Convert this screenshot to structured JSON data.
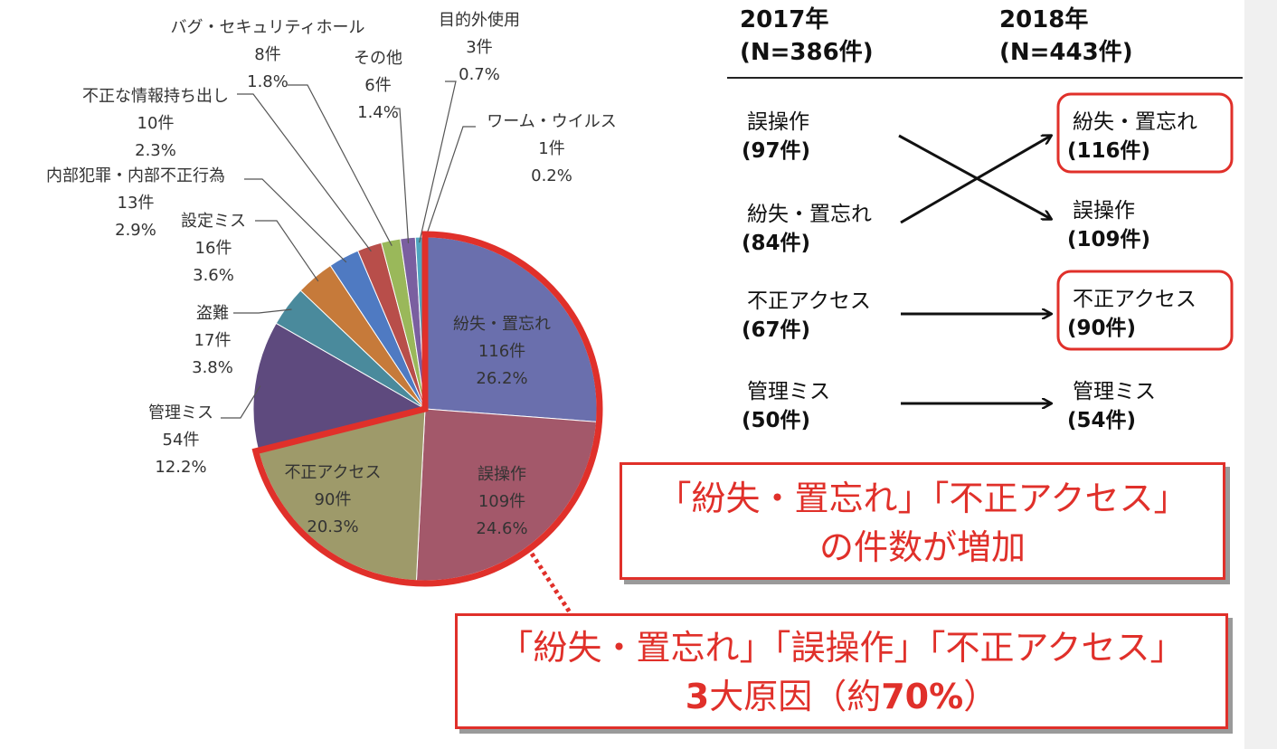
{
  "chart_data": {
    "type": "pie",
    "slices": [
      {
        "name": "紛失・置忘れ",
        "count_label": "116件",
        "pct_label": "26.2%",
        "value": 26.2,
        "color": "#6a6fad"
      },
      {
        "name": "誤操作",
        "count_label": "109件",
        "pct_label": "24.6%",
        "value": 24.6,
        "color": "#a3586a"
      },
      {
        "name": "不正アクセス",
        "count_label": "90件",
        "pct_label": "20.3%",
        "value": 20.3,
        "color": "#9e9a6a"
      },
      {
        "name": "管理ミス",
        "count_label": "54件",
        "pct_label": "12.2%",
        "value": 12.2,
        "color": "#5e4a7e"
      },
      {
        "name": "盗難",
        "count_label": "17件",
        "pct_label": "3.8%",
        "value": 3.8,
        "color": "#4a8a9c"
      },
      {
        "name": "設定ミス",
        "count_label": "16件",
        "pct_label": "3.6%",
        "value": 3.6,
        "color": "#c67a3a"
      },
      {
        "name": "内部犯罪・内部不正行為",
        "count_label": "13件",
        "pct_label": "2.9%",
        "value": 2.9,
        "color": "#4f7ac2"
      },
      {
        "name": "不正な情報持ち出し",
        "count_label": "10件",
        "pct_label": "2.3%",
        "value": 2.3,
        "color": "#b84e4a"
      },
      {
        "name": "バグ・セキュリティホール",
        "count_label": "8件",
        "pct_label": "1.8%",
        "value": 1.8,
        "color": "#9ab85a"
      },
      {
        "name": "その他",
        "count_label": "6件",
        "pct_label": "1.4%",
        "value": 1.4,
        "color": "#7a5fa0"
      },
      {
        "name": "目的外使用",
        "count_label": "3件",
        "pct_label": "0.7%",
        "value": 0.7,
        "color": "#4fa6c0"
      },
      {
        "name": "ワーム・ウイルス",
        "count_label": "1件",
        "pct_label": "0.2%",
        "value": 0.2,
        "color": "#d08a3a"
      }
    ],
    "highlight_color": "#e0302a"
  },
  "comparison": {
    "year_2017": {
      "title": "2017年",
      "n": "(N=386件)"
    },
    "year_2018": {
      "title": "2018年",
      "n": "(N=443件)"
    },
    "left": [
      {
        "name": "誤操作",
        "count": "(97件)"
      },
      {
        "name": "紛失・置忘れ",
        "count": "(84件)"
      },
      {
        "name": "不正アクセス",
        "count": "(67件)"
      },
      {
        "name": "管理ミス",
        "count": "(50件)"
      }
    ],
    "right": [
      {
        "name": "紛失・置忘れ",
        "count": "(116件)",
        "boxed": true
      },
      {
        "name": "誤操作",
        "count": "(109件)",
        "boxed": false
      },
      {
        "name": "不正アクセス",
        "count": "(90件)",
        "boxed": true
      },
      {
        "name": "管理ミス",
        "count": "(54件)",
        "boxed": false
      }
    ]
  },
  "callouts": {
    "increase_line1": "「紛失・置忘れ」「不正アクセス」",
    "increase_line2": "の件数が増加",
    "top3_line1": "「紛失・置忘れ」「誤操作」「不正アクセス」",
    "top3_line2_prefix": "3",
    "top3_line2_mid": "大原因（約",
    "top3_line2_pct": "70%",
    "top3_line2_suffix": "）"
  }
}
